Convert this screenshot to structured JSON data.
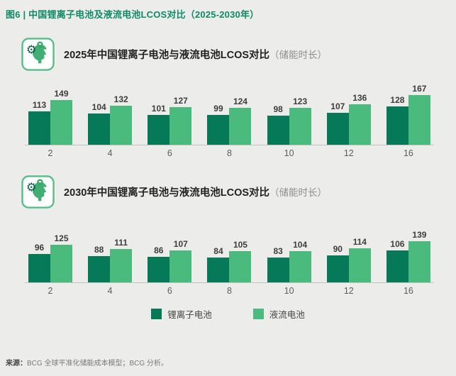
{
  "page": {
    "title": "图6 | 中国锂离子电池及液流电池LCOS对比（2025-2030年）",
    "source_label": "来源：",
    "source_text": "BCG 全球平准化储能成本模型；BCG 分析。"
  },
  "colors": {
    "title_green": "#0f8a67",
    "liion_dark_green": "#067a58",
    "flow_light_green": "#4aba7d",
    "background": "#ececeb",
    "axis_line": "#c3c3c0"
  },
  "legend": {
    "items": [
      {
        "label": "锂离子电池",
        "color": "#067a58"
      },
      {
        "label": "液流电池",
        "color": "#4aba7d"
      }
    ]
  },
  "chart_data": [
    {
      "type": "bar",
      "title": "2025年中国锂离子电池与液流电池LCOS对比",
      "title_suffix": "（储能时长）",
      "categories": [
        "2",
        "4",
        "6",
        "8",
        "10",
        "12",
        "16"
      ],
      "series": [
        {
          "name": "锂离子电池",
          "color": "#067a58",
          "values": [
            113,
            104,
            101,
            99,
            98,
            107,
            128
          ]
        },
        {
          "name": "液流电池",
          "color": "#4aba7d",
          "values": [
            149,
            132,
            127,
            124,
            123,
            136,
            167
          ]
        }
      ],
      "xlabel": "储能时长",
      "ylim": [
        0,
        180
      ],
      "grid": false,
      "data_labels": true,
      "legend_position": "shared-bottom"
    },
    {
      "type": "bar",
      "title": "2030年中国锂离子电池与液流电池LCOS对比",
      "title_suffix": "（储能时长）",
      "categories": [
        "2",
        "4",
        "6",
        "8",
        "10",
        "12",
        "16"
      ],
      "series": [
        {
          "name": "锂离子电池",
          "color": "#067a58",
          "values": [
            96,
            88,
            86,
            84,
            83,
            90,
            106
          ]
        },
        {
          "name": "液流电池",
          "color": "#4aba7d",
          "values": [
            125,
            111,
            107,
            105,
            104,
            114,
            139
          ]
        }
      ],
      "xlabel": "储能时长",
      "ylim": [
        0,
        180
      ],
      "grid": false,
      "data_labels": true,
      "legend_position": "shared-bottom"
    }
  ]
}
